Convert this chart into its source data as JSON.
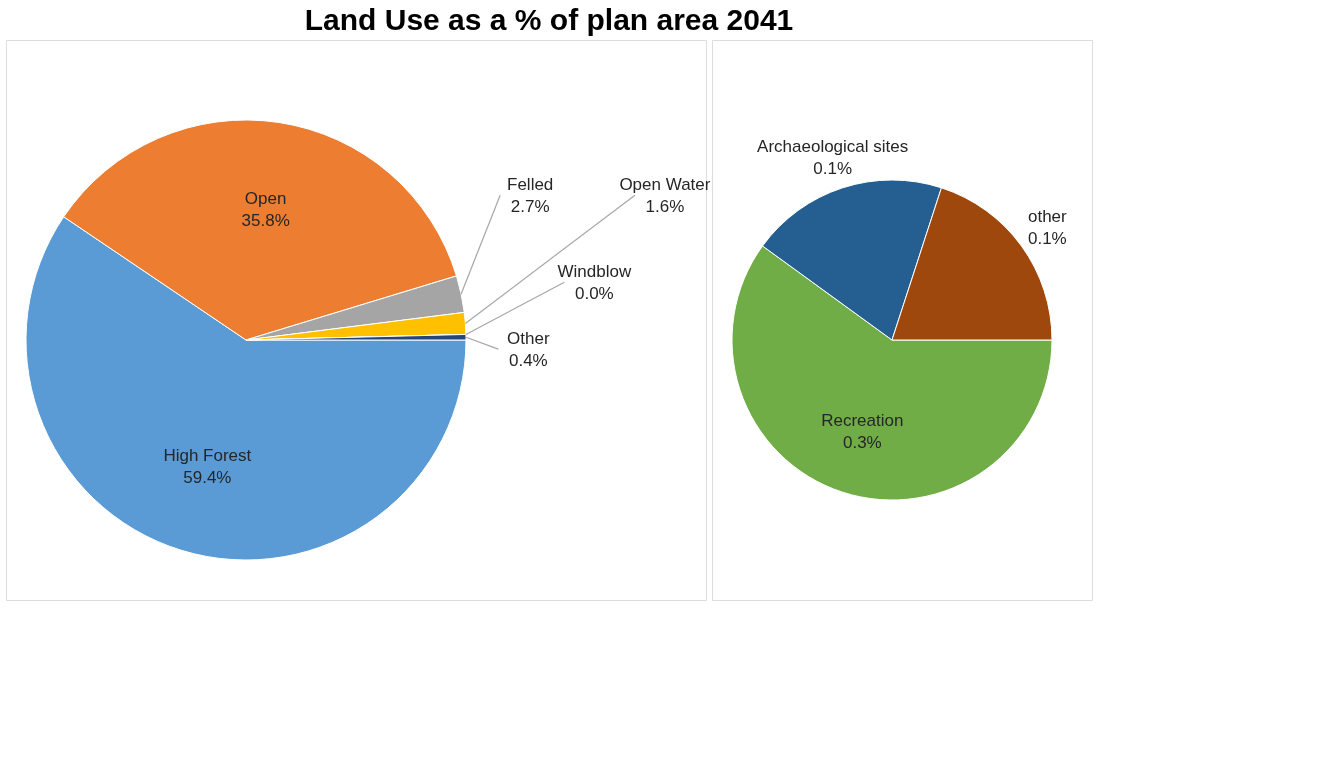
{
  "chart_data": [
    {
      "type": "pie",
      "title": "Land Use as a % of plan area 2041",
      "categories": [
        "High Forest",
        "Open",
        "Felled",
        "Open Water",
        "Windblow",
        "Other"
      ],
      "values": [
        59.4,
        35.8,
        2.7,
        1.6,
        0.0,
        0.4
      ],
      "colors": [
        "#5b9bd5",
        "#ed7d31",
        "#a5a5a5",
        "#ffc000",
        "#4472c4",
        "#264478"
      ],
      "value_labels": [
        "59.4%",
        "35.8%",
        "2.7%",
        "1.6%",
        "0.0%",
        "0.4%"
      ]
    },
    {
      "type": "pie",
      "categories": [
        "Recreation",
        "Archaeological sites",
        "other"
      ],
      "values": [
        0.3,
        0.1,
        0.1
      ],
      "colors": [
        "#70ad47",
        "#255e91",
        "#9e480e"
      ],
      "value_labels": [
        "0.3%",
        "0.1%",
        "0.1%"
      ]
    }
  ]
}
